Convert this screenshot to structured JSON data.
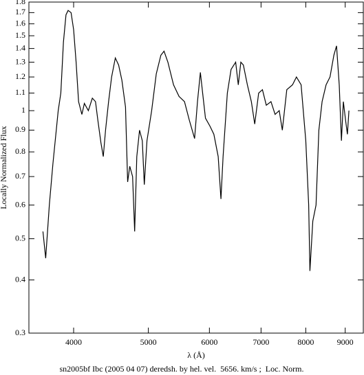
{
  "chart_data": {
    "type": "line",
    "title": "sn2005bf Ibc (2005 04 07) deredsh. by hel. vel.  5656. km/s ;  Loc. Norm.",
    "xlabel": "λ (Å)",
    "ylabel": "Locally Normalized Flux",
    "xlog": true,
    "ylog": true,
    "color": "#000000",
    "xlim": [
      3500,
      9500
    ],
    "ylim": [
      0.3,
      1.8
    ],
    "xticks": [
      4000,
      5000,
      6000,
      7000,
      8000,
      9000
    ],
    "yticks": [
      0.3,
      0.4,
      0.5,
      0.6,
      0.7,
      0.8,
      0.9,
      1,
      1.1,
      1.2,
      1.3,
      1.4,
      1.5,
      1.6,
      1.7,
      1.8
    ],
    "x": [
      3650,
      3680,
      3720,
      3760,
      3820,
      3850,
      3880,
      3910,
      3935,
      3970,
      4000,
      4030,
      4060,
      4100,
      4130,
      4180,
      4230,
      4270,
      4300,
      4340,
      4370,
      4400,
      4440,
      4480,
      4530,
      4575,
      4620,
      4670,
      4700,
      4730,
      4770,
      4800,
      4830,
      4870,
      4910,
      4940,
      4980,
      5050,
      5120,
      5190,
      5240,
      5300,
      5390,
      5480,
      5570,
      5650,
      5740,
      5790,
      5840,
      5880,
      5930,
      6010,
      6080,
      6160,
      6210,
      6250,
      6330,
      6400,
      6490,
      6540,
      6590,
      6640,
      6720,
      6800,
      6870,
      6950,
      7030,
      7110,
      7210,
      7300,
      7390,
      7460,
      7560,
      7690,
      7780,
      7890,
      8000,
      8070,
      8100,
      8170,
      8250,
      8320,
      8400,
      8500,
      8600,
      8700,
      8770,
      8840,
      8900,
      8950,
      9010,
      9060,
      9100
    ],
    "values": [
      0.52,
      0.45,
      0.6,
      0.75,
      1.0,
      1.1,
      1.45,
      1.68,
      1.72,
      1.7,
      1.55,
      1.3,
      1.05,
      0.98,
      1.04,
      1.0,
      1.07,
      1.05,
      0.95,
      0.84,
      0.78,
      0.9,
      1.05,
      1.2,
      1.33,
      1.28,
      1.18,
      1.02,
      0.68,
      0.74,
      0.7,
      0.52,
      0.78,
      0.9,
      0.85,
      0.67,
      0.85,
      1.0,
      1.22,
      1.35,
      1.38,
      1.3,
      1.15,
      1.08,
      1.05,
      0.95,
      0.86,
      1.05,
      1.23,
      1.1,
      0.96,
      0.92,
      0.88,
      0.78,
      0.62,
      0.78,
      1.1,
      1.25,
      1.3,
      1.15,
      1.3,
      1.28,
      1.15,
      1.05,
      0.93,
      1.1,
      1.12,
      1.03,
      1.05,
      0.98,
      1.0,
      0.9,
      1.12,
      1.15,
      1.2,
      1.15,
      0.85,
      0.6,
      0.42,
      0.55,
      0.6,
      0.9,
      1.05,
      1.15,
      1.2,
      1.35,
      1.42,
      1.15,
      0.85,
      1.05,
      0.95,
      0.88,
      1.0
    ]
  }
}
